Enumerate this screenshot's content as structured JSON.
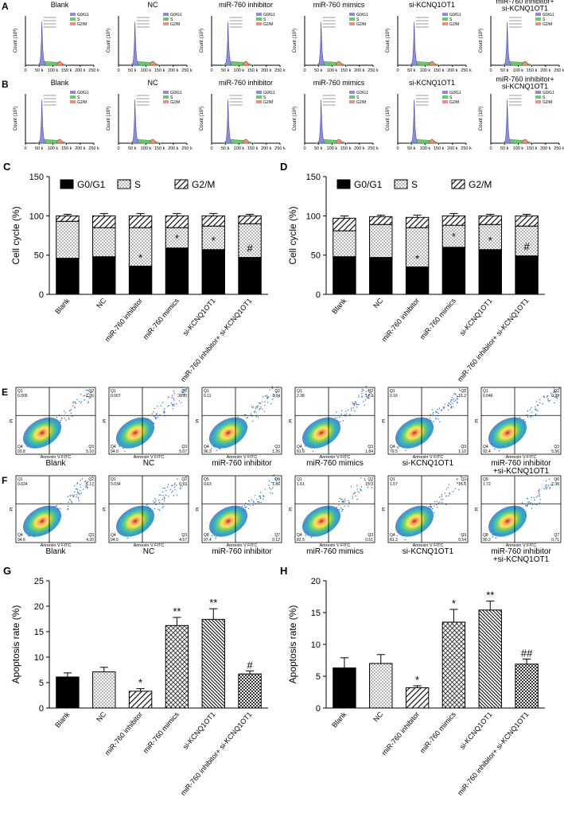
{
  "chart_data": [
    {
      "panel": "C",
      "type": "bar",
      "stacked": true,
      "categories": [
        "Blank",
        "NC",
        "miR-760 inhibitor",
        "miR-760 mimics",
        "si-KCNQ1OT1",
        "miR-760 inhibitor+ si-KCNQ1OT1"
      ],
      "series": [
        {
          "name": "G0/G1",
          "pattern": "solid",
          "color": "#000000",
          "values": [
            46,
            48,
            36,
            59,
            57,
            47
          ],
          "errors": [
            5,
            4,
            3,
            5,
            4,
            4
          ]
        },
        {
          "name": "S",
          "pattern": "dots",
          "color": "#000000",
          "values": [
            47,
            37,
            49,
            26,
            30,
            43
          ],
          "errors": [
            3,
            3,
            3,
            3,
            3,
            3
          ]
        },
        {
          "name": "G2/M",
          "pattern": "hatch",
          "color": "#000000",
          "values": [
            7,
            15,
            15,
            15,
            13,
            10
          ],
          "errors": [
            2,
            3,
            3,
            3,
            3,
            2
          ]
        }
      ],
      "annotations": [
        null,
        null,
        "*",
        "*",
        "*",
        "#"
      ],
      "y_label": "Cell cycle (%)",
      "ylim": [
        0,
        150
      ],
      "yticks": [
        0,
        50,
        100,
        150
      ]
    },
    {
      "panel": "D",
      "type": "bar",
      "stacked": true,
      "categories": [
        "Blank",
        "NC",
        "miR-760 inhibitor",
        "miR-760 mimics",
        "si-KCNQ1OT1",
        "miR-760 inhibitor+ si-KCNQ1OT1"
      ],
      "series": [
        {
          "name": "G0/G1",
          "pattern": "solid",
          "color": "#000000",
          "values": [
            48,
            47,
            35,
            60,
            57,
            49
          ],
          "errors": [
            5,
            4,
            3,
            6,
            4,
            4
          ]
        },
        {
          "name": "S",
          "pattern": "dots",
          "color": "#000000",
          "values": [
            33,
            42,
            50,
            28,
            32,
            38
          ],
          "errors": [
            3,
            3,
            3,
            3,
            3,
            3
          ]
        },
        {
          "name": "G2/M",
          "pattern": "hatch",
          "color": "#000000",
          "values": [
            16,
            10,
            13,
            12,
            11,
            13
          ],
          "errors": [
            3,
            2,
            3,
            3,
            2,
            2
          ]
        }
      ],
      "annotations": [
        null,
        null,
        "*",
        "*",
        "*",
        "#"
      ],
      "y_label": "Cell cycle (%)",
      "ylim": [
        0,
        150
      ],
      "yticks": [
        0,
        50,
        100,
        150
      ]
    },
    {
      "panel": "G",
      "type": "bar",
      "categories": [
        "Blank",
        "NC",
        "miR-760 inhibitor",
        "miR-760 mimics",
        "si-KCNQ1OT1",
        "miR-760 inhibitor+ si-KCNQ1OT1"
      ],
      "values": [
        6.1,
        7.1,
        3.3,
        16.2,
        17.4,
        6.7
      ],
      "errors": [
        0.8,
        0.9,
        0.5,
        1.6,
        2.1,
        0.6
      ],
      "patterns": [
        "solid",
        "dots",
        "hatch",
        "cross",
        "dense",
        "checker"
      ],
      "color": "#000000",
      "annotations": [
        null,
        null,
        "*",
        "**",
        "**",
        "#"
      ],
      "y_label": "Apoptosis rate (%)",
      "ylim": [
        0,
        25
      ],
      "yticks": [
        0,
        5,
        10,
        15,
        20,
        25
      ]
    },
    {
      "panel": "H",
      "type": "bar",
      "categories": [
        "Blank",
        "NC",
        "miR-760 inhibitor",
        "miR-760 mimics",
        "si-KCNQ1OT1",
        "miR-760 inhibitor+ si-KCNQ1OT1"
      ],
      "values": [
        6.3,
        7.0,
        3.2,
        13.5,
        15.4,
        6.9
      ],
      "errors": [
        1.6,
        1.4,
        0.3,
        2.0,
        1.4,
        0.8
      ],
      "patterns": [
        "solid",
        "dots",
        "hatch",
        "cross",
        "dense",
        "checker"
      ],
      "color": "#000000",
      "annotations": [
        null,
        null,
        "*",
        "*",
        "**",
        "##"
      ],
      "y_label": "Apoptosis rate (%)",
      "ylim": [
        0,
        20
      ],
      "yticks": [
        0,
        5,
        10,
        15,
        20
      ]
    }
  ],
  "cell_cycle_panels": [
    {
      "panel": "A",
      "y_label": "Count (10³)",
      "xticks": [
        "0",
        "50 k",
        "100 k",
        "150 k",
        "200 k",
        "250 k"
      ],
      "legend": [
        {
          "name": "G0/G1",
          "color": "#8c8cd9"
        },
        {
          "name": "S",
          "color": "#66cc66"
        },
        {
          "name": "G2/M",
          "color": "#f08c80"
        }
      ],
      "titles": [
        [
          "Blank"
        ],
        [
          "NC"
        ],
        [
          "miR-760 inhibitor"
        ],
        [
          "miR-760 mimics"
        ],
        [
          "si-KCNQ1OT1"
        ],
        [
          "miR-760 inhibitor+",
          "si-KCNQ1OT1"
        ]
      ]
    },
    {
      "panel": "B",
      "y_label": "Count (10³)",
      "xticks": [
        "0",
        "50 k",
        "100 k",
        "150 k",
        "200 k",
        "250 k"
      ],
      "legend": [
        {
          "name": "G0/G1",
          "color": "#8c8cd9"
        },
        {
          "name": "S",
          "color": "#66cc66"
        },
        {
          "name": "G2/M",
          "color": "#f08c80"
        }
      ],
      "titles": [
        [
          "Blank"
        ],
        [
          "NC"
        ],
        [
          "miR-760 inhibitor"
        ],
        [
          "miR-760 mimics"
        ],
        [
          "si-KCNQ1OT1"
        ],
        [
          "miR-760 inhibitor+",
          "si-KCNQ1OT1"
        ]
      ]
    }
  ],
  "apoptosis_panels": [
    {
      "panel": "E",
      "x_label": "Annexin V FITC",
      "y_label": "PI",
      "plots": [
        {
          "title": [
            "Blank"
          ],
          "quadrants": [
            {
              "label": "Q1",
              "value": "0.005"
            },
            {
              "label": "Q2",
              "value": "1.06"
            },
            {
              "label": "Q4",
              "value": "93.8"
            },
            {
              "label": "Q3",
              "value": "5.10"
            }
          ]
        },
        {
          "title": [
            "NC"
          ],
          "quadrants": [
            {
              "label": "Q1",
              "value": "0.007"
            },
            {
              "label": "Q2",
              "value": "0.90"
            },
            {
              "label": "Q4",
              "value": "94.0"
            },
            {
              "label": "Q3",
              "value": "5.07"
            }
          ]
        },
        {
          "title": [
            "miR-760 inhibitor"
          ],
          "quadrants": [
            {
              "label": "Q1",
              "value": "0.11"
            },
            {
              "label": "Q2",
              "value": "2.34"
            },
            {
              "label": "Q4",
              "value": "96.3"
            },
            {
              "label": "Q3",
              "value": "1.26"
            }
          ]
        },
        {
          "title": [
            "miR-760 mimics"
          ],
          "quadrants": [
            {
              "label": "Q1",
              "value": "2.38"
            },
            {
              "label": "Q2",
              "value": "14.2"
            },
            {
              "label": "Q4",
              "value": "81.6"
            },
            {
              "label": "Q3",
              "value": "1.84"
            }
          ]
        },
        {
          "title": [
            "si-KCNQ1OT1"
          ],
          "quadrants": [
            {
              "label": "Q1",
              "value": "0.16"
            },
            {
              "label": "Q2",
              "value": "15.2"
            },
            {
              "label": "Q4",
              "value": "79.5"
            },
            {
              "label": "Q3",
              "value": "1.10"
            }
          ]
        },
        {
          "title": [
            "miR-760 inhibitor",
            "+si-KCNQ1OT1"
          ],
          "quadrants": [
            {
              "label": "Q1",
              "value": "0.046"
            },
            {
              "label": "Q2",
              "value": "0.98"
            },
            {
              "label": "Q4",
              "value": "93.4"
            },
            {
              "label": "Q3",
              "value": "5.56"
            }
          ]
        }
      ]
    },
    {
      "panel": "F",
      "x_label": "Annexin V FITC",
      "y_label": "PI",
      "plots": [
        {
          "title": [
            "Blank"
          ],
          "quadrants": [
            {
              "label": "Q1",
              "value": "0.024"
            },
            {
              "label": "Q2",
              "value": "1.17"
            },
            {
              "label": "Q4",
              "value": "94.6"
            },
            {
              "label": "Q3",
              "value": "4.20"
            }
          ]
        },
        {
          "title": [
            "NC"
          ],
          "quadrants": [
            {
              "label": "Q1",
              "value": "0.034"
            },
            {
              "label": "Q2",
              "value": "0.93"
            },
            {
              "label": "Q4",
              "value": "94.5"
            },
            {
              "label": "Q3",
              "value": "4.57"
            }
          ]
        },
        {
          "title": [
            "miR-760 inhibitor"
          ],
          "quadrants": [
            {
              "label": "Q5",
              "value": "0.63"
            },
            {
              "label": "Q6",
              "value": "1.86"
            },
            {
              "label": "Q8",
              "value": "97.4"
            },
            {
              "label": "Q7",
              "value": "0.12"
            }
          ]
        },
        {
          "title": [
            "miR-760 mimics"
          ],
          "quadrants": [
            {
              "label": "Q1",
              "value": "1.61"
            },
            {
              "label": "Q2",
              "value": "15.3"
            },
            {
              "label": "Q4",
              "value": "82.5"
            },
            {
              "label": "Q3",
              "value": "0.61"
            }
          ]
        },
        {
          "title": [
            "si-KCNQ1OT1"
          ],
          "quadrants": [
            {
              "label": "Q1",
              "value": "1.57"
            },
            {
              "label": "Q2",
              "value": "16.6"
            },
            {
              "label": "Q4",
              "value": "81.3"
            },
            {
              "label": "Q3",
              "value": "0.54"
            }
          ]
        },
        {
          "title": [
            "miR-760 inhibitor",
            "+si-KCNQ1OT1"
          ],
          "quadrants": [
            {
              "label": "Q5",
              "value": "1.72"
            },
            {
              "label": "Q6",
              "value": "7.38"
            },
            {
              "label": "Q8",
              "value": "90.2"
            },
            {
              "label": "Q7",
              "value": "0.71"
            }
          ]
        }
      ]
    }
  ]
}
